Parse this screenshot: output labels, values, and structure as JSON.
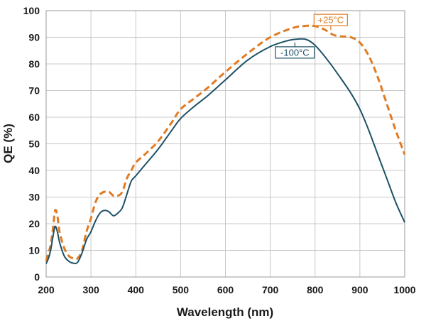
{
  "chart_data": {
    "type": "line",
    "title": "",
    "xlabel": "Wavelength (nm)",
    "ylabel": "QE (%)",
    "xlim": [
      200,
      1000
    ],
    "ylim": [
      0,
      100
    ],
    "xticks": [
      200,
      300,
      400,
      500,
      600,
      700,
      800,
      900,
      1000
    ],
    "yticks": [
      0,
      10,
      20,
      30,
      40,
      50,
      60,
      70,
      80,
      90,
      100
    ],
    "grid": true,
    "series": [
      {
        "name": "+25°C",
        "color": "#e07b24",
        "style": "dashed",
        "x": [
          200,
          205,
          210,
          215,
          220,
          225,
          230,
          240,
          250,
          260,
          270,
          280,
          290,
          300,
          310,
          320,
          330,
          340,
          350,
          360,
          370,
          380,
          390,
          400,
          420,
          450,
          480,
          500,
          530,
          560,
          600,
          650,
          700,
          750,
          780,
          800,
          820,
          840,
          850,
          860,
          880,
          900,
          920,
          940,
          960,
          980,
          1000
        ],
        "y": [
          6,
          9,
          12,
          18,
          25,
          23,
          17,
          11,
          8,
          7,
          7,
          10,
          17,
          22,
          28,
          31,
          32,
          32,
          30.5,
          30.5,
          32,
          37,
          40,
          43,
          46,
          51,
          58,
          63,
          67,
          71,
          77,
          84,
          90,
          93.5,
          94.3,
          94.2,
          93,
          91,
          90.5,
          90.3,
          90,
          88,
          83,
          75,
          65,
          55,
          46
        ]
      },
      {
        "name": "-100°C",
        "color": "#1d5166",
        "style": "solid",
        "x": [
          200,
          205,
          210,
          215,
          220,
          225,
          230,
          240,
          250,
          260,
          270,
          280,
          290,
          300,
          310,
          320,
          330,
          340,
          350,
          360,
          370,
          380,
          390,
          400,
          420,
          450,
          480,
          500,
          530,
          560,
          600,
          650,
          700,
          740,
          760,
          780,
          800,
          830,
          860,
          880,
          900,
          920,
          940,
          960,
          980,
          1000
        ],
        "y": [
          5,
          7,
          10,
          15,
          19,
          17,
          13,
          8,
          6,
          5.2,
          5.5,
          9,
          14,
          17,
          21,
          24,
          25,
          24.5,
          23,
          24,
          26,
          31,
          36,
          38,
          42,
          48,
          55,
          59.5,
          64,
          68,
          74,
          81.5,
          86.5,
          88.8,
          89.3,
          89.2,
          87,
          81,
          74,
          69,
          63,
          55,
          46,
          37,
          28,
          20.5
        ]
      }
    ],
    "annotations": [
      {
        "text": "+25°C",
        "series": 0,
        "at_x": 835,
        "at_y": 96.5,
        "color": "#e07b24"
      },
      {
        "text": "-100°C",
        "series": 1,
        "at_x": 755,
        "at_y": 84.3,
        "color": "#1d5166"
      }
    ]
  }
}
